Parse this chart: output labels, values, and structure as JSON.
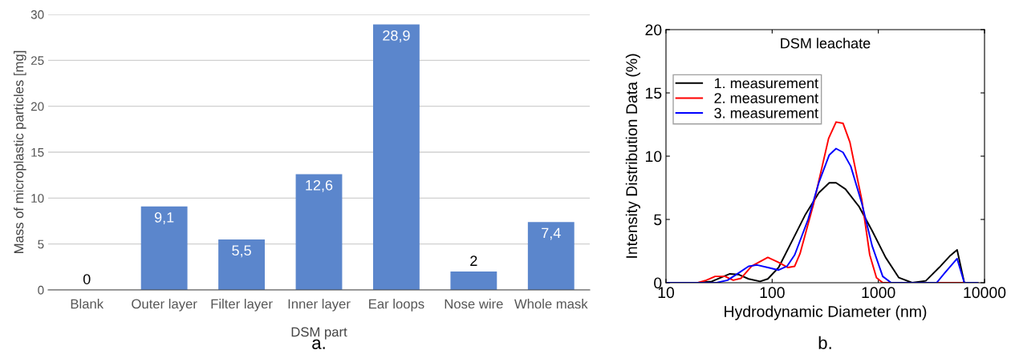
{
  "chart_data": [
    {
      "type": "bar",
      "xlabel": "DSM part",
      "ylabel": "Mass of microplastic particles [mg]",
      "categories": [
        "Blank",
        "Outer layer",
        "Filter layer",
        "Inner layer",
        "Ear loops",
        "Nose wire",
        "Whole mask"
      ],
      "values": [
        0,
        9.1,
        5.5,
        12.6,
        28.9,
        2,
        7.4
      ],
      "value_labels": [
        "0",
        "9,1",
        "5,5",
        "12,6",
        "28,9",
        "2",
        "7,4"
      ],
      "color": "#5b86cc",
      "ylim": [
        0,
        30
      ],
      "yticks": [
        0,
        5,
        10,
        15,
        20,
        25,
        30
      ],
      "grid": "y",
      "annotations": [
        "a."
      ]
    },
    {
      "type": "line",
      "title": "DSM leachate",
      "xlabel": "Hydrodynamic Diameter (nm)",
      "ylabel": "Intensity Distribution Data (%)",
      "log": "x",
      "xlim": [
        10,
        10000
      ],
      "xticks": [
        10,
        100,
        1000,
        10000
      ],
      "ylim": [
        0,
        20
      ],
      "yticks": [
        0,
        5,
        10,
        15,
        20
      ],
      "grid": false,
      "legend": "top left",
      "marker": "none",
      "line_style": "solid",
      "series": [
        {
          "name": "1. measurement",
          "color": "#000000",
          "x": [
            10,
            20,
            27,
            40,
            48,
            60,
            77,
            91,
            115,
            154,
            206,
            275,
            345,
            400,
            490,
            660,
            875,
            1170,
            1560,
            2080,
            2800,
            3740,
            4700,
            5520,
            6450,
            8600
          ],
          "values": [
            0,
            0,
            0.1,
            0.7,
            0.65,
            0.3,
            0.1,
            0.3,
            1.2,
            3.3,
            5.4,
            7.1,
            7.9,
            7.9,
            7.4,
            6.0,
            4.1,
            2.0,
            0.4,
            0,
            0.15,
            1.2,
            2.1,
            2.6,
            0,
            0
          ]
        },
        {
          "name": "2. measurement",
          "color": "#ff0000",
          "x": [
            10,
            20,
            24,
            29,
            36,
            43,
            51,
            64,
            91,
            115,
            141,
            163,
            183,
            245,
            340,
            400,
            465,
            540,
            700,
            830,
            960,
            1100,
            6450,
            8600
          ],
          "values": [
            0,
            0,
            0.2,
            0.5,
            0.5,
            0.2,
            0.35,
            1.3,
            2.0,
            1.6,
            1.2,
            1.3,
            2.3,
            6.2,
            11.4,
            12.7,
            12.6,
            11.1,
            6.5,
            2.2,
            0.4,
            0,
            0,
            0
          ]
        },
        {
          "name": "3. measurement",
          "color": "#0000ff",
          "x": [
            10,
            30,
            38,
            48,
            60,
            72,
            91,
            115,
            138,
            163,
            218,
            275,
            345,
            400,
            465,
            550,
            700,
            875,
            1100,
            1320,
            3540,
            4200,
            5520,
            6450,
            8600
          ],
          "values": [
            0,
            0,
            0.2,
            0.75,
            1.3,
            1.4,
            1.2,
            1.0,
            1.3,
            2.2,
            5.0,
            7.9,
            10.1,
            10.6,
            10.3,
            9.2,
            6.25,
            2.9,
            0.5,
            0,
            0,
            0.75,
            1.9,
            0,
            0
          ]
        }
      ],
      "annotations": [
        "b."
      ]
    }
  ]
}
